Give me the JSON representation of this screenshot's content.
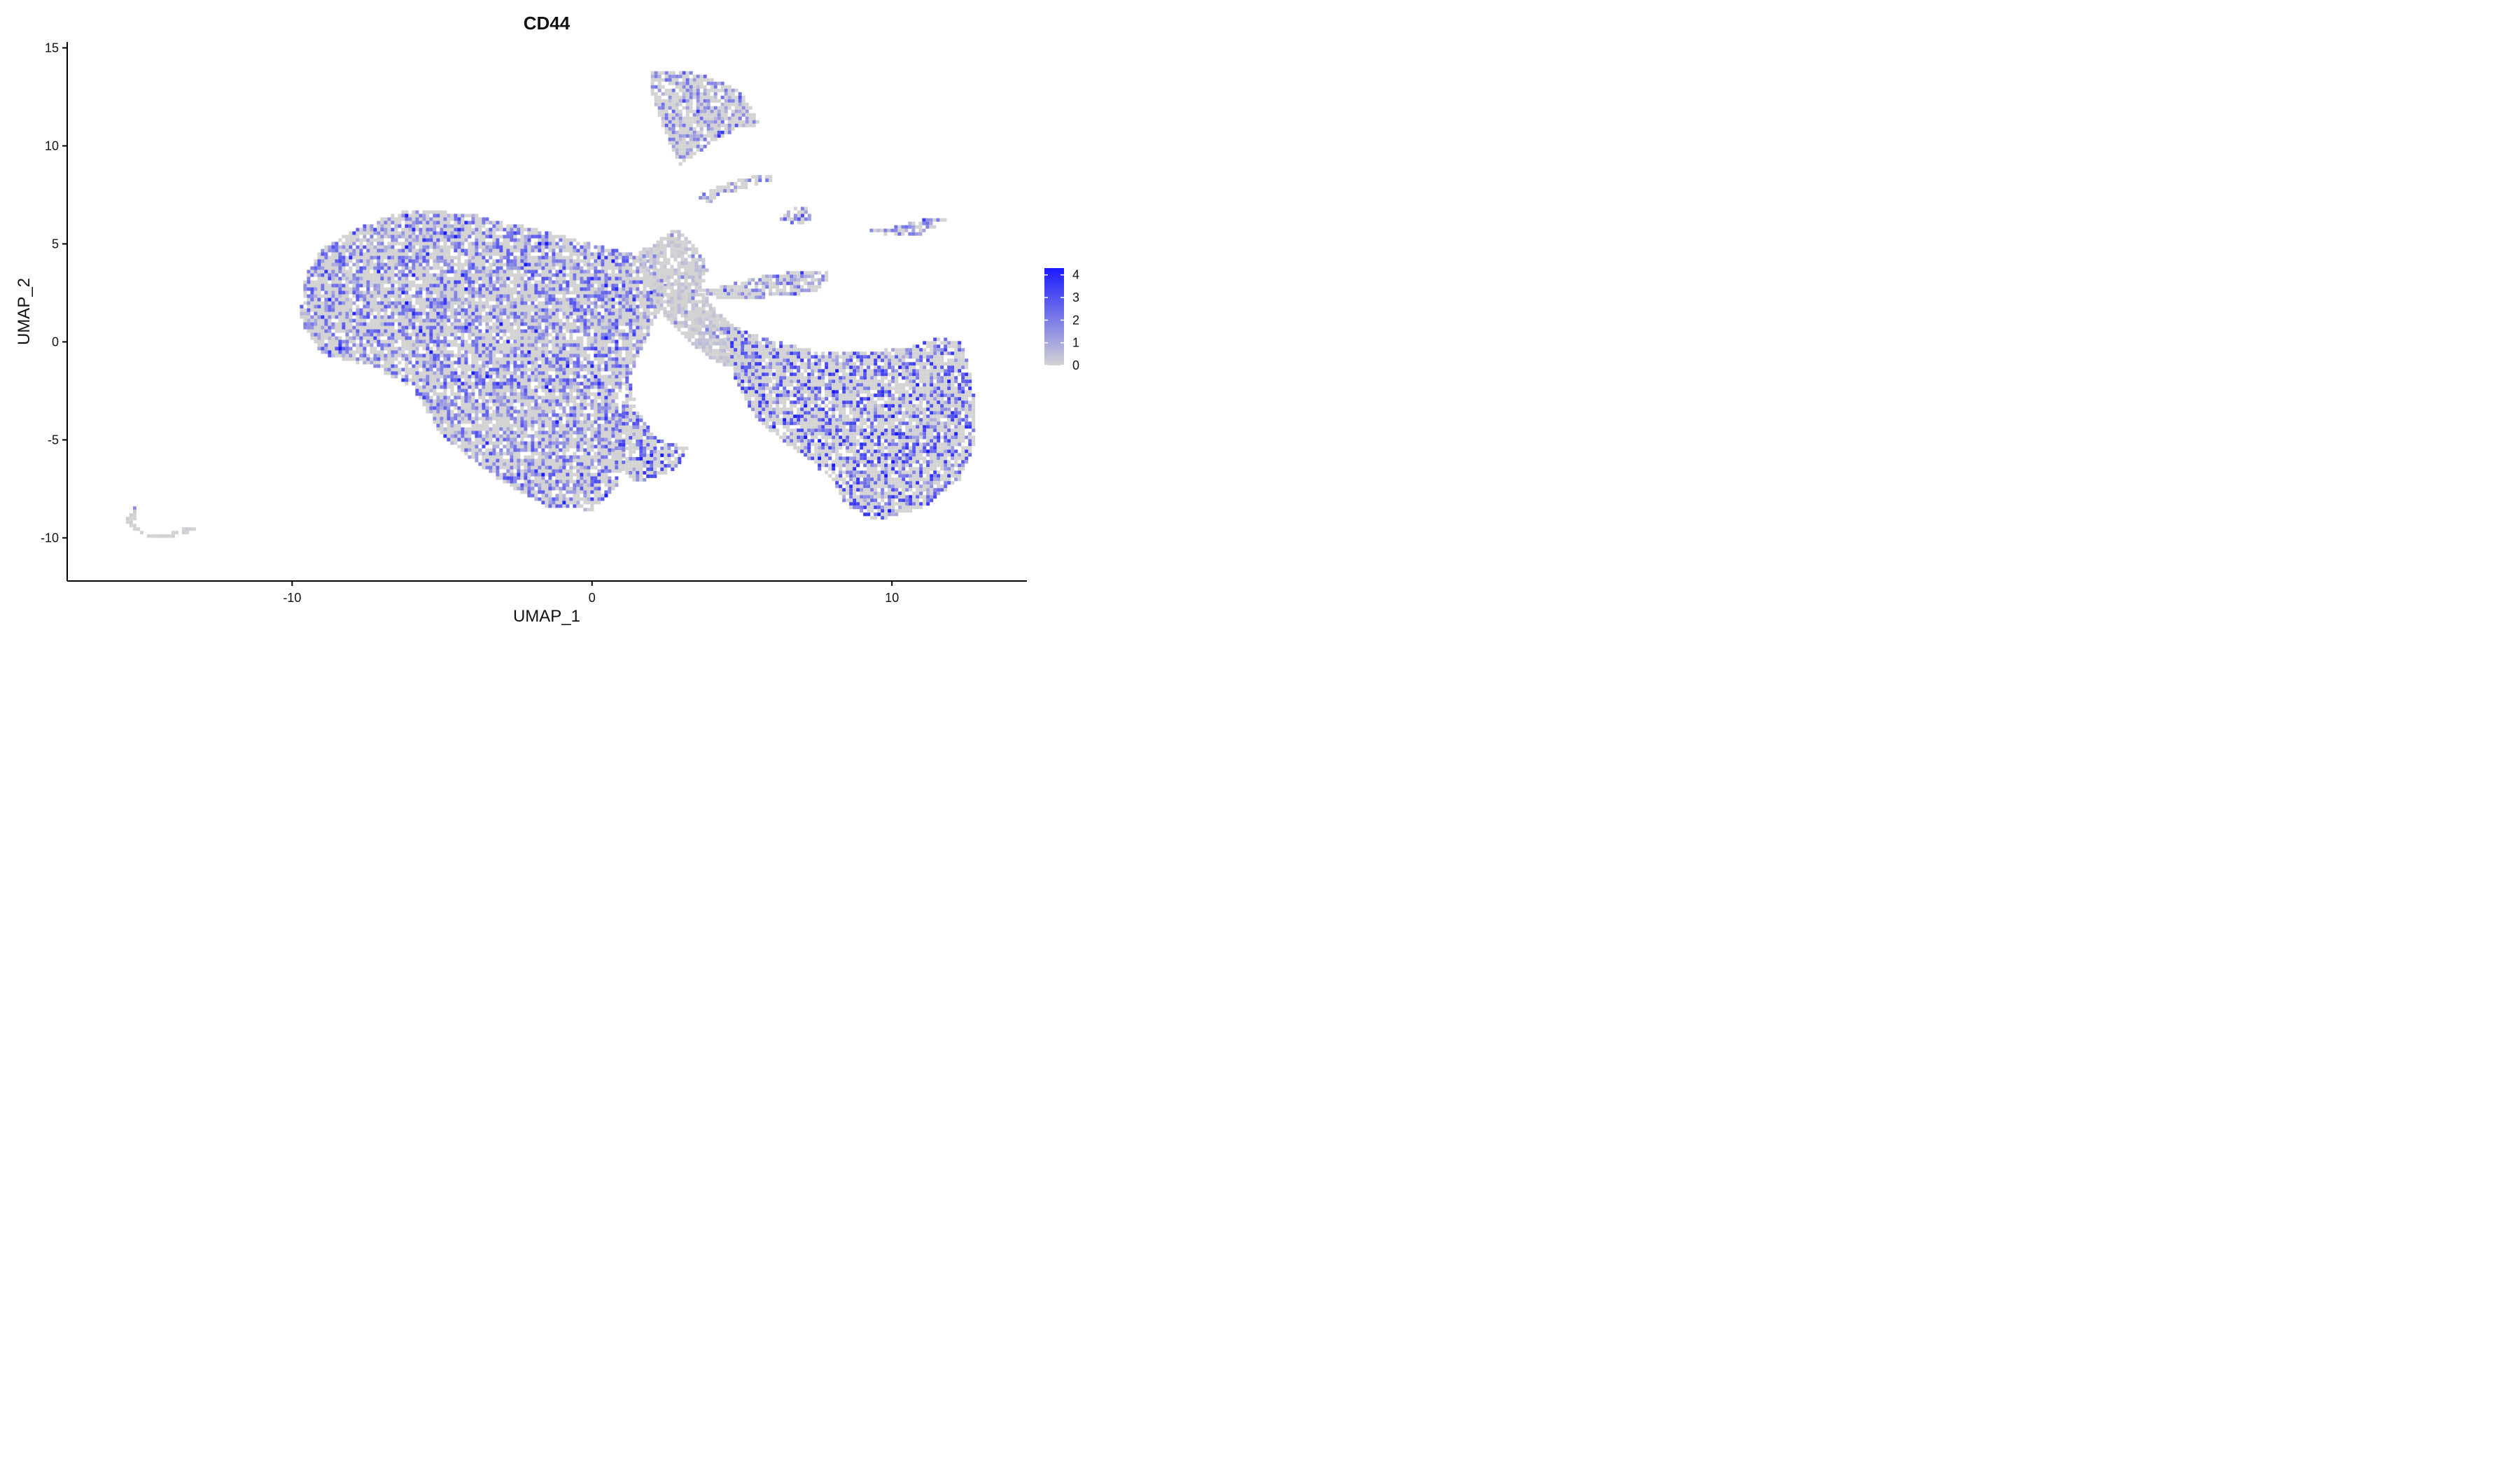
{
  "chart_data": {
    "type": "scatter",
    "title": "CD44",
    "xlabel": "UMAP_1",
    "ylabel": "UMAP_2",
    "xlim": [
      -17.5,
      14.5
    ],
    "ylim": [
      -12.2,
      15.3
    ],
    "xticks": [
      -10,
      0,
      10
    ],
    "xtick_labels": [
      "-10",
      "0",
      "10"
    ],
    "yticks": [
      -10,
      -5,
      0,
      5,
      10,
      15
    ],
    "ytick_labels": [
      "-10",
      "-5",
      "0",
      "5",
      "10",
      "15"
    ],
    "grid": false,
    "color_scale": {
      "low_color": "#d3d3d3",
      "high_color": "#1a1aff",
      "min": 0,
      "max": 4.3,
      "legend_ticks": [
        0,
        1,
        2,
        3,
        4
      ],
      "legend_labels": [
        "0",
        "1",
        "2",
        "3",
        "4"
      ],
      "legend_placement": "right"
    },
    "regions": [
      {
        "name": "large-left-mass",
        "hull": [
          [
            -9.5,
            0.5
          ],
          [
            -9.8,
            1.5
          ],
          [
            -9.5,
            3.5
          ],
          [
            -9,
            4.8
          ],
          [
            -7.5,
            6
          ],
          [
            -6,
            6.8
          ],
          [
            -4,
            6.5
          ],
          [
            -2,
            5.8
          ],
          [
            0,
            5
          ],
          [
            2,
            4.2
          ],
          [
            2.5,
            3
          ],
          [
            2.2,
            1.5
          ],
          [
            1.5,
            -1
          ],
          [
            0.8,
            -3
          ],
          [
            1.2,
            -5
          ],
          [
            0.8,
            -7.5
          ],
          [
            0,
            -8.6
          ],
          [
            -1.5,
            -8.4
          ],
          [
            -3,
            -7.2
          ],
          [
            -5,
            -4.8
          ],
          [
            -6,
            -2.3
          ],
          [
            -7.5,
            -1.2
          ],
          [
            -9,
            -0.6
          ]
        ],
        "expr_mean": 1.5
      },
      {
        "name": "central-stalk",
        "hull": [
          [
            1.5,
            4.5
          ],
          [
            2.8,
            5.8
          ],
          [
            3.5,
            4.8
          ],
          [
            3.9,
            3.7
          ],
          [
            3.6,
            2.7
          ],
          [
            4.2,
            1.5
          ],
          [
            5.2,
            0
          ],
          [
            6,
            -2
          ],
          [
            4,
            -1
          ],
          [
            2.2,
            1.5
          ],
          [
            1.8,
            3.5
          ]
        ],
        "expr_mean": 0.3
      },
      {
        "name": "lower-right-lobe",
        "hull": [
          [
            4.2,
            1.2
          ],
          [
            5.5,
            0.3
          ],
          [
            7.5,
            -0.5
          ],
          [
            9,
            -0.5
          ],
          [
            10.5,
            -0.3
          ],
          [
            11.5,
            0.2
          ],
          [
            12.3,
            0
          ],
          [
            12.7,
            -2
          ],
          [
            12.8,
            -5
          ],
          [
            12.3,
            -7
          ],
          [
            11,
            -8.5
          ],
          [
            9.5,
            -9.1
          ],
          [
            8.5,
            -8.4
          ],
          [
            8,
            -7
          ],
          [
            7,
            -5.8
          ],
          [
            5.5,
            -4
          ],
          [
            4.8,
            -2
          ]
        ],
        "expr_mean": 1.9
      },
      {
        "name": "lower-central-lobe",
        "hull": [
          [
            1.2,
            -1.5
          ],
          [
            1.5,
            -3.5
          ],
          [
            2.2,
            -5
          ],
          [
            3.2,
            -5.3
          ],
          [
            2.8,
            -6.5
          ],
          [
            1.5,
            -7.2
          ],
          [
            0.7,
            -6
          ]
        ],
        "expr_mean": 1.8
      },
      {
        "name": "top-cluster",
        "hull": [
          [
            1.9,
            13.8
          ],
          [
            2.8,
            13.9
          ],
          [
            3.8,
            13.6
          ],
          [
            5,
            12.7
          ],
          [
            5.6,
            11.1
          ],
          [
            4.6,
            10.7
          ],
          [
            4,
            10.1
          ],
          [
            2.9,
            9
          ],
          [
            2.5,
            10.5
          ],
          [
            2,
            12.5
          ]
        ],
        "expr_mean": 1.2
      },
      {
        "name": "arc-cluster-1",
        "hull": [
          [
            3.5,
            7.4
          ],
          [
            4.5,
            8.1
          ],
          [
            5.8,
            8.6
          ],
          [
            6.2,
            8.3
          ],
          [
            5,
            7.8
          ],
          [
            3.9,
            7.1
          ]
        ],
        "expr_mean": 1.2
      },
      {
        "name": "arc-cluster-2",
        "hull": [
          [
            6.2,
            6.3
          ],
          [
            6.7,
            6.8
          ],
          [
            7.2,
            6.8
          ],
          [
            7.3,
            6.2
          ],
          [
            6.8,
            5.9
          ]
        ],
        "expr_mean": 1.5
      },
      {
        "name": "right-far-arc",
        "hull": [
          [
            9.2,
            5.7
          ],
          [
            10.2,
            5.9
          ],
          [
            11.4,
            6.4
          ],
          [
            11.9,
            6.2
          ],
          [
            11,
            5.5
          ],
          [
            10,
            5.4
          ]
        ],
        "expr_mean": 1.2
      },
      {
        "name": "right-arc-band",
        "hull": [
          [
            3.5,
            2.6
          ],
          [
            4.5,
            2.9
          ],
          [
            5.5,
            3.3
          ],
          [
            7.2,
            3.7
          ],
          [
            7.8,
            3.6
          ],
          [
            7.9,
            3.2
          ],
          [
            7.4,
            2.5
          ],
          [
            6,
            2.3
          ],
          [
            4.5,
            2.1
          ]
        ],
        "expr_mean": 1.2
      },
      {
        "name": "far-left-arc",
        "hull": [
          [
            -15.6,
            -9.2
          ],
          [
            -15.2,
            -8.3
          ],
          [
            -15.1,
            -9.7
          ],
          [
            -14.5,
            -10.1
          ],
          [
            -13.5,
            -9.8
          ],
          [
            -13.1,
            -9.4
          ],
          [
            -13.8,
            -9.6
          ],
          [
            -14.6,
            -9.9
          ],
          [
            -15.3,
            -9.6
          ]
        ],
        "expr_mean": 0.1
      }
    ]
  }
}
